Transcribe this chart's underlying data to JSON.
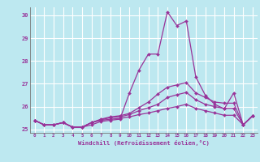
{
  "xlabel": "Windchill (Refroidissement éolien,°C)",
  "background_color": "#bde8f0",
  "line_color": "#993399",
  "grid_color": "#ffffff",
  "xlim": [
    -0.5,
    23.5
  ],
  "ylim": [
    24.85,
    30.35
  ],
  "yticks": [
    25,
    26,
    27,
    28,
    29,
    30
  ],
  "xticks": [
    0,
    1,
    2,
    3,
    4,
    5,
    6,
    7,
    8,
    9,
    10,
    11,
    12,
    13,
    14,
    15,
    16,
    17,
    18,
    19,
    20,
    21,
    22,
    23
  ],
  "hours": [
    0,
    1,
    2,
    3,
    4,
    5,
    6,
    7,
    8,
    9,
    10,
    11,
    12,
    13,
    14,
    15,
    16,
    17,
    18,
    19,
    20,
    21,
    22,
    23
  ],
  "series": [
    [
      25.4,
      25.2,
      25.2,
      25.3,
      25.1,
      25.1,
      25.2,
      25.35,
      25.4,
      25.45,
      26.6,
      27.6,
      28.3,
      28.3,
      30.15,
      29.55,
      29.75,
      27.3,
      26.5,
      26.1,
      25.9,
      26.6,
      25.2,
      25.6
    ],
    [
      25.4,
      25.2,
      25.2,
      25.3,
      25.1,
      25.1,
      25.3,
      25.45,
      25.55,
      25.6,
      25.7,
      25.95,
      26.2,
      26.55,
      26.85,
      26.95,
      27.05,
      26.6,
      26.4,
      26.2,
      26.15,
      26.15,
      25.2,
      25.6
    ],
    [
      25.4,
      25.2,
      25.2,
      25.3,
      25.1,
      25.1,
      25.3,
      25.42,
      25.52,
      25.55,
      25.65,
      25.82,
      25.95,
      26.1,
      26.4,
      26.52,
      26.62,
      26.3,
      26.1,
      26.0,
      25.92,
      25.92,
      25.2,
      25.6
    ],
    [
      25.4,
      25.2,
      25.2,
      25.3,
      25.1,
      25.1,
      25.3,
      25.4,
      25.45,
      25.48,
      25.55,
      25.65,
      25.72,
      25.82,
      25.92,
      26.0,
      26.1,
      25.92,
      25.82,
      25.72,
      25.62,
      25.62,
      25.2,
      25.6
    ]
  ]
}
